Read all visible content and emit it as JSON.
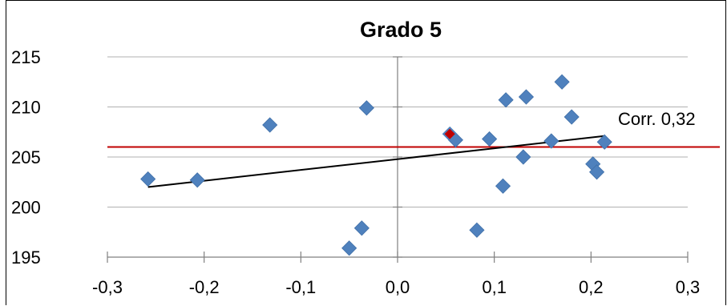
{
  "chart_data": {
    "type": "scatter",
    "title": "Grado 5",
    "xlim": [
      -0.3,
      0.3
    ],
    "ylim": [
      195,
      215
    ],
    "x_ticks": [
      "-0,3",
      "-0,2",
      "-0,1",
      "0,0",
      "0,1",
      "0,2",
      "0,3"
    ],
    "y_ticks": [
      "215",
      "210",
      "205",
      "200",
      "195"
    ],
    "grid": "horizontal",
    "legend": "none",
    "colors": {
      "points": "#4f81bd",
      "highlight": "#c00000",
      "mean_line": "#c00000",
      "trend_line": "#000000",
      "gridlines": "#b0b0b0"
    },
    "points": [
      {
        "x": -0.258,
        "y": 202.8
      },
      {
        "x": -0.207,
        "y": 202.7
      },
      {
        "x": -0.132,
        "y": 208.2
      },
      {
        "x": -0.032,
        "y": 209.9
      },
      {
        "x": -0.05,
        "y": 195.9
      },
      {
        "x": -0.037,
        "y": 197.9
      },
      {
        "x": 0.06,
        "y": 206.7
      },
      {
        "x": 0.082,
        "y": 197.7
      },
      {
        "x": 0.095,
        "y": 206.8
      },
      {
        "x": 0.109,
        "y": 202.1
      },
      {
        "x": 0.112,
        "y": 210.7
      },
      {
        "x": 0.13,
        "y": 205.0
      },
      {
        "x": 0.133,
        "y": 211.0
      },
      {
        "x": 0.159,
        "y": 206.6
      },
      {
        "x": 0.17,
        "y": 212.5
      },
      {
        "x": 0.18,
        "y": 209.0
      },
      {
        "x": 0.202,
        "y": 204.3
      },
      {
        "x": 0.206,
        "y": 203.5
      },
      {
        "x": 0.214,
        "y": 206.5
      }
    ],
    "highlight_point": {
      "x": 0.054,
      "y": 207.3
    },
    "mean_line_y": 206.0,
    "trend_line": {
      "x": [
        -0.258,
        0.214
      ],
      "y": [
        202.0,
        207.1
      ]
    },
    "annotation": "Corr. 0,32"
  }
}
